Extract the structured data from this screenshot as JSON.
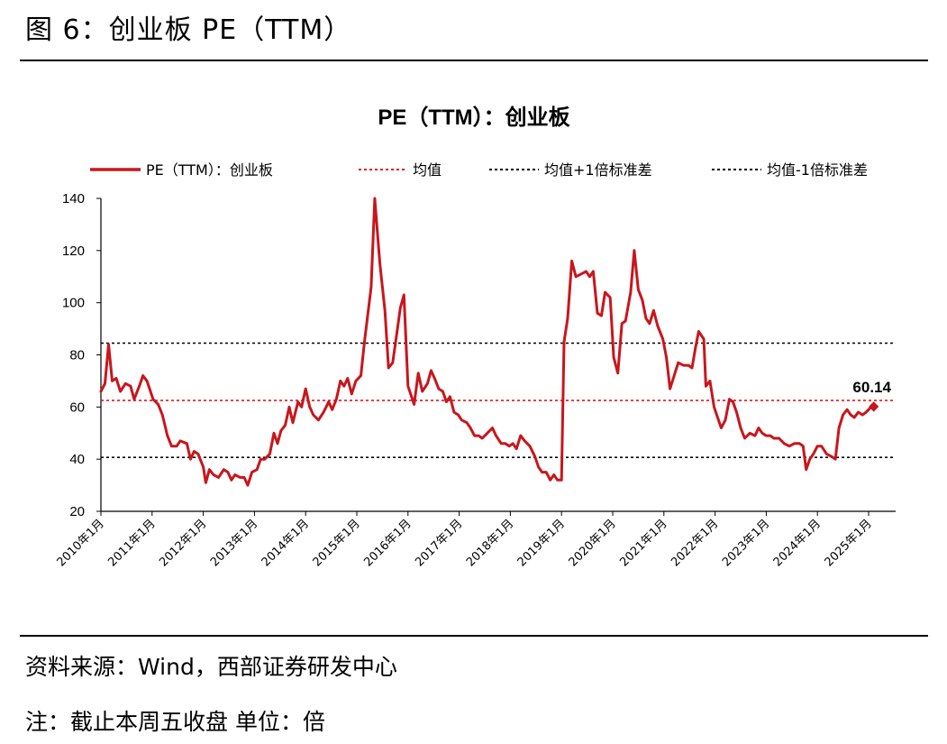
{
  "figure_title": "图 6：创业板 PE（TTM）",
  "footer": {
    "source": "资料来源：Wind，西部证券研发中心",
    "note": "注：截止本周五收盘 单位：倍"
  },
  "colors": {
    "series": "#c8161d",
    "mean": "#e8141e",
    "band": "#000000",
    "axis": "#000000"
  },
  "chart_data": {
    "type": "line",
    "title": "PE（TTM）：创业板",
    "xlabel": "",
    "ylabel": "",
    "ylim": [
      20,
      140
    ],
    "yticks": [
      20,
      40,
      60,
      80,
      100,
      120,
      140
    ],
    "xlim": [
      0,
      15.5
    ],
    "xticks": [
      {
        "x": 0,
        "label": "2010年1月"
      },
      {
        "x": 1,
        "label": "2011年1月"
      },
      {
        "x": 2,
        "label": "2012年1月"
      },
      {
        "x": 3,
        "label": "2013年1月"
      },
      {
        "x": 4,
        "label": "2014年1月"
      },
      {
        "x": 5,
        "label": "2015年1月"
      },
      {
        "x": 6,
        "label": "2016年1月"
      },
      {
        "x": 7,
        "label": "2017年1月"
      },
      {
        "x": 8,
        "label": "2018年1月"
      },
      {
        "x": 9,
        "label": "2019年1月"
      },
      {
        "x": 10,
        "label": "2020年1月"
      },
      {
        "x": 11,
        "label": "2021年1月"
      },
      {
        "x": 12,
        "label": "2022年1月"
      },
      {
        "x": 13,
        "label": "2023年1月"
      },
      {
        "x": 14,
        "label": "2024年1月"
      },
      {
        "x": 15,
        "label": "2025年1月"
      }
    ],
    "legend_position": "top",
    "legend": [
      {
        "label": "PE（TTM）：创业板",
        "style": "solid-red"
      },
      {
        "label": "均值",
        "style": "dashed-red"
      },
      {
        "label": "均值+1倍标准差",
        "style": "dashed-black"
      },
      {
        "label": "均值-1倍标准差",
        "style": "dashed-black"
      }
    ],
    "reference_lines": {
      "mean": 62.5,
      "plus_1sd": 84.5,
      "minus_1sd": 40.7
    },
    "last_value": 60.14,
    "last_value_label": "60.14",
    "series": [
      {
        "name": "PE（TTM）：创业板",
        "points": [
          [
            0.0,
            66
          ],
          [
            0.08,
            69
          ],
          [
            0.15,
            84
          ],
          [
            0.22,
            70
          ],
          [
            0.3,
            71
          ],
          [
            0.38,
            66
          ],
          [
            0.48,
            69
          ],
          [
            0.58,
            68
          ],
          [
            0.65,
            63
          ],
          [
            0.75,
            68
          ],
          [
            0.82,
            72
          ],
          [
            0.9,
            70
          ],
          [
            1.02,
            63
          ],
          [
            1.12,
            61
          ],
          [
            1.2,
            57
          ],
          [
            1.3,
            49
          ],
          [
            1.38,
            45
          ],
          [
            1.48,
            45
          ],
          [
            1.55,
            47
          ],
          [
            1.68,
            46
          ],
          [
            1.75,
            40
          ],
          [
            1.82,
            43
          ],
          [
            1.9,
            42
          ],
          [
            2.0,
            37
          ],
          [
            2.05,
            31
          ],
          [
            2.12,
            36
          ],
          [
            2.2,
            34
          ],
          [
            2.3,
            33
          ],
          [
            2.4,
            36
          ],
          [
            2.48,
            35
          ],
          [
            2.55,
            32
          ],
          [
            2.62,
            34
          ],
          [
            2.72,
            33
          ],
          [
            2.8,
            33
          ],
          [
            2.87,
            30
          ],
          [
            2.95,
            35
          ],
          [
            3.05,
            36
          ],
          [
            3.12,
            40
          ],
          [
            3.2,
            40
          ],
          [
            3.3,
            42
          ],
          [
            3.38,
            50
          ],
          [
            3.45,
            46
          ],
          [
            3.52,
            51
          ],
          [
            3.6,
            53
          ],
          [
            3.68,
            60
          ],
          [
            3.75,
            54
          ],
          [
            3.85,
            62
          ],
          [
            3.92,
            60
          ],
          [
            4.0,
            67
          ],
          [
            4.08,
            60
          ],
          [
            4.15,
            57
          ],
          [
            4.25,
            55
          ],
          [
            4.35,
            58
          ],
          [
            4.45,
            62
          ],
          [
            4.52,
            59
          ],
          [
            4.6,
            63
          ],
          [
            4.68,
            70
          ],
          [
            4.75,
            68
          ],
          [
            4.82,
            71
          ],
          [
            4.9,
            65
          ],
          [
            4.98,
            70
          ],
          [
            5.08,
            72
          ],
          [
            5.15,
            85
          ],
          [
            5.28,
            106
          ],
          [
            5.35,
            140
          ],
          [
            5.45,
            115
          ],
          [
            5.55,
            97
          ],
          [
            5.62,
            75
          ],
          [
            5.7,
            77
          ],
          [
            5.78,
            88
          ],
          [
            5.85,
            98
          ],
          [
            5.92,
            103
          ],
          [
            6.0,
            68
          ],
          [
            6.12,
            61
          ],
          [
            6.2,
            73
          ],
          [
            6.28,
            66
          ],
          [
            6.38,
            69
          ],
          [
            6.45,
            74
          ],
          [
            6.52,
            71
          ],
          [
            6.6,
            67
          ],
          [
            6.68,
            66
          ],
          [
            6.75,
            62
          ],
          [
            6.82,
            64
          ],
          [
            6.9,
            58
          ],
          [
            6.98,
            57
          ],
          [
            7.05,
            55
          ],
          [
            7.15,
            54
          ],
          [
            7.22,
            52
          ],
          [
            7.3,
            49
          ],
          [
            7.38,
            49
          ],
          [
            7.45,
            48
          ],
          [
            7.55,
            50
          ],
          [
            7.65,
            52
          ],
          [
            7.72,
            49
          ],
          [
            7.82,
            46
          ],
          [
            7.9,
            46
          ],
          [
            7.98,
            45
          ],
          [
            8.05,
            46
          ],
          [
            8.12,
            44
          ],
          [
            8.2,
            49
          ],
          [
            8.28,
            47
          ],
          [
            8.38,
            45
          ],
          [
            8.48,
            41
          ],
          [
            8.55,
            37
          ],
          [
            8.62,
            35
          ],
          [
            8.7,
            35
          ],
          [
            8.78,
            32
          ],
          [
            8.85,
            34
          ],
          [
            8.92,
            32
          ],
          [
            9.0,
            32
          ],
          [
            9.05,
            85
          ],
          [
            9.12,
            94
          ],
          [
            9.2,
            116
          ],
          [
            9.28,
            110
          ],
          [
            9.38,
            111
          ],
          [
            9.48,
            112
          ],
          [
            9.55,
            110
          ],
          [
            9.62,
            112
          ],
          [
            9.7,
            96
          ],
          [
            9.78,
            95
          ],
          [
            9.85,
            104
          ],
          [
            9.95,
            102
          ],
          [
            10.02,
            79
          ],
          [
            10.1,
            73
          ],
          [
            10.18,
            92
          ],
          [
            10.25,
            93
          ],
          [
            10.35,
            104
          ],
          [
            10.42,
            120
          ],
          [
            10.5,
            105
          ],
          [
            10.58,
            101
          ],
          [
            10.65,
            94
          ],
          [
            10.72,
            92
          ],
          [
            10.8,
            97
          ],
          [
            10.88,
            91
          ],
          [
            10.98,
            86
          ],
          [
            11.05,
            79
          ],
          [
            11.12,
            67
          ],
          [
            11.2,
            72
          ],
          [
            11.28,
            77
          ],
          [
            11.38,
            76
          ],
          [
            11.48,
            76
          ],
          [
            11.55,
            75
          ],
          [
            11.62,
            83
          ],
          [
            11.68,
            89
          ],
          [
            11.78,
            86
          ],
          [
            11.82,
            68
          ],
          [
            11.9,
            70
          ],
          [
            11.98,
            60
          ],
          [
            12.05,
            56
          ],
          [
            12.12,
            52
          ],
          [
            12.2,
            55
          ],
          [
            12.28,
            63
          ],
          [
            12.35,
            62
          ],
          [
            12.42,
            58
          ],
          [
            12.5,
            52
          ],
          [
            12.58,
            48
          ],
          [
            12.68,
            50
          ],
          [
            12.78,
            49
          ],
          [
            12.85,
            52
          ],
          [
            12.92,
            50
          ],
          [
            13.0,
            49
          ],
          [
            13.08,
            49
          ],
          [
            13.15,
            48
          ],
          [
            13.25,
            48
          ],
          [
            13.35,
            46
          ],
          [
            13.45,
            45
          ],
          [
            13.55,
            46
          ],
          [
            13.65,
            46
          ],
          [
            13.72,
            45
          ],
          [
            13.78,
            36
          ],
          [
            13.85,
            40
          ],
          [
            13.92,
            42
          ],
          [
            14.0,
            45
          ],
          [
            14.08,
            45
          ],
          [
            14.18,
            42
          ],
          [
            14.28,
            41
          ],
          [
            14.35,
            40
          ],
          [
            14.42,
            52
          ],
          [
            14.5,
            57
          ],
          [
            14.58,
            59
          ],
          [
            14.65,
            57
          ],
          [
            14.72,
            56
          ],
          [
            14.8,
            58
          ],
          [
            14.88,
            57
          ],
          [
            14.95,
            58
          ],
          [
            15.05,
            60
          ],
          [
            15.1,
            60.14
          ]
        ]
      }
    ]
  }
}
